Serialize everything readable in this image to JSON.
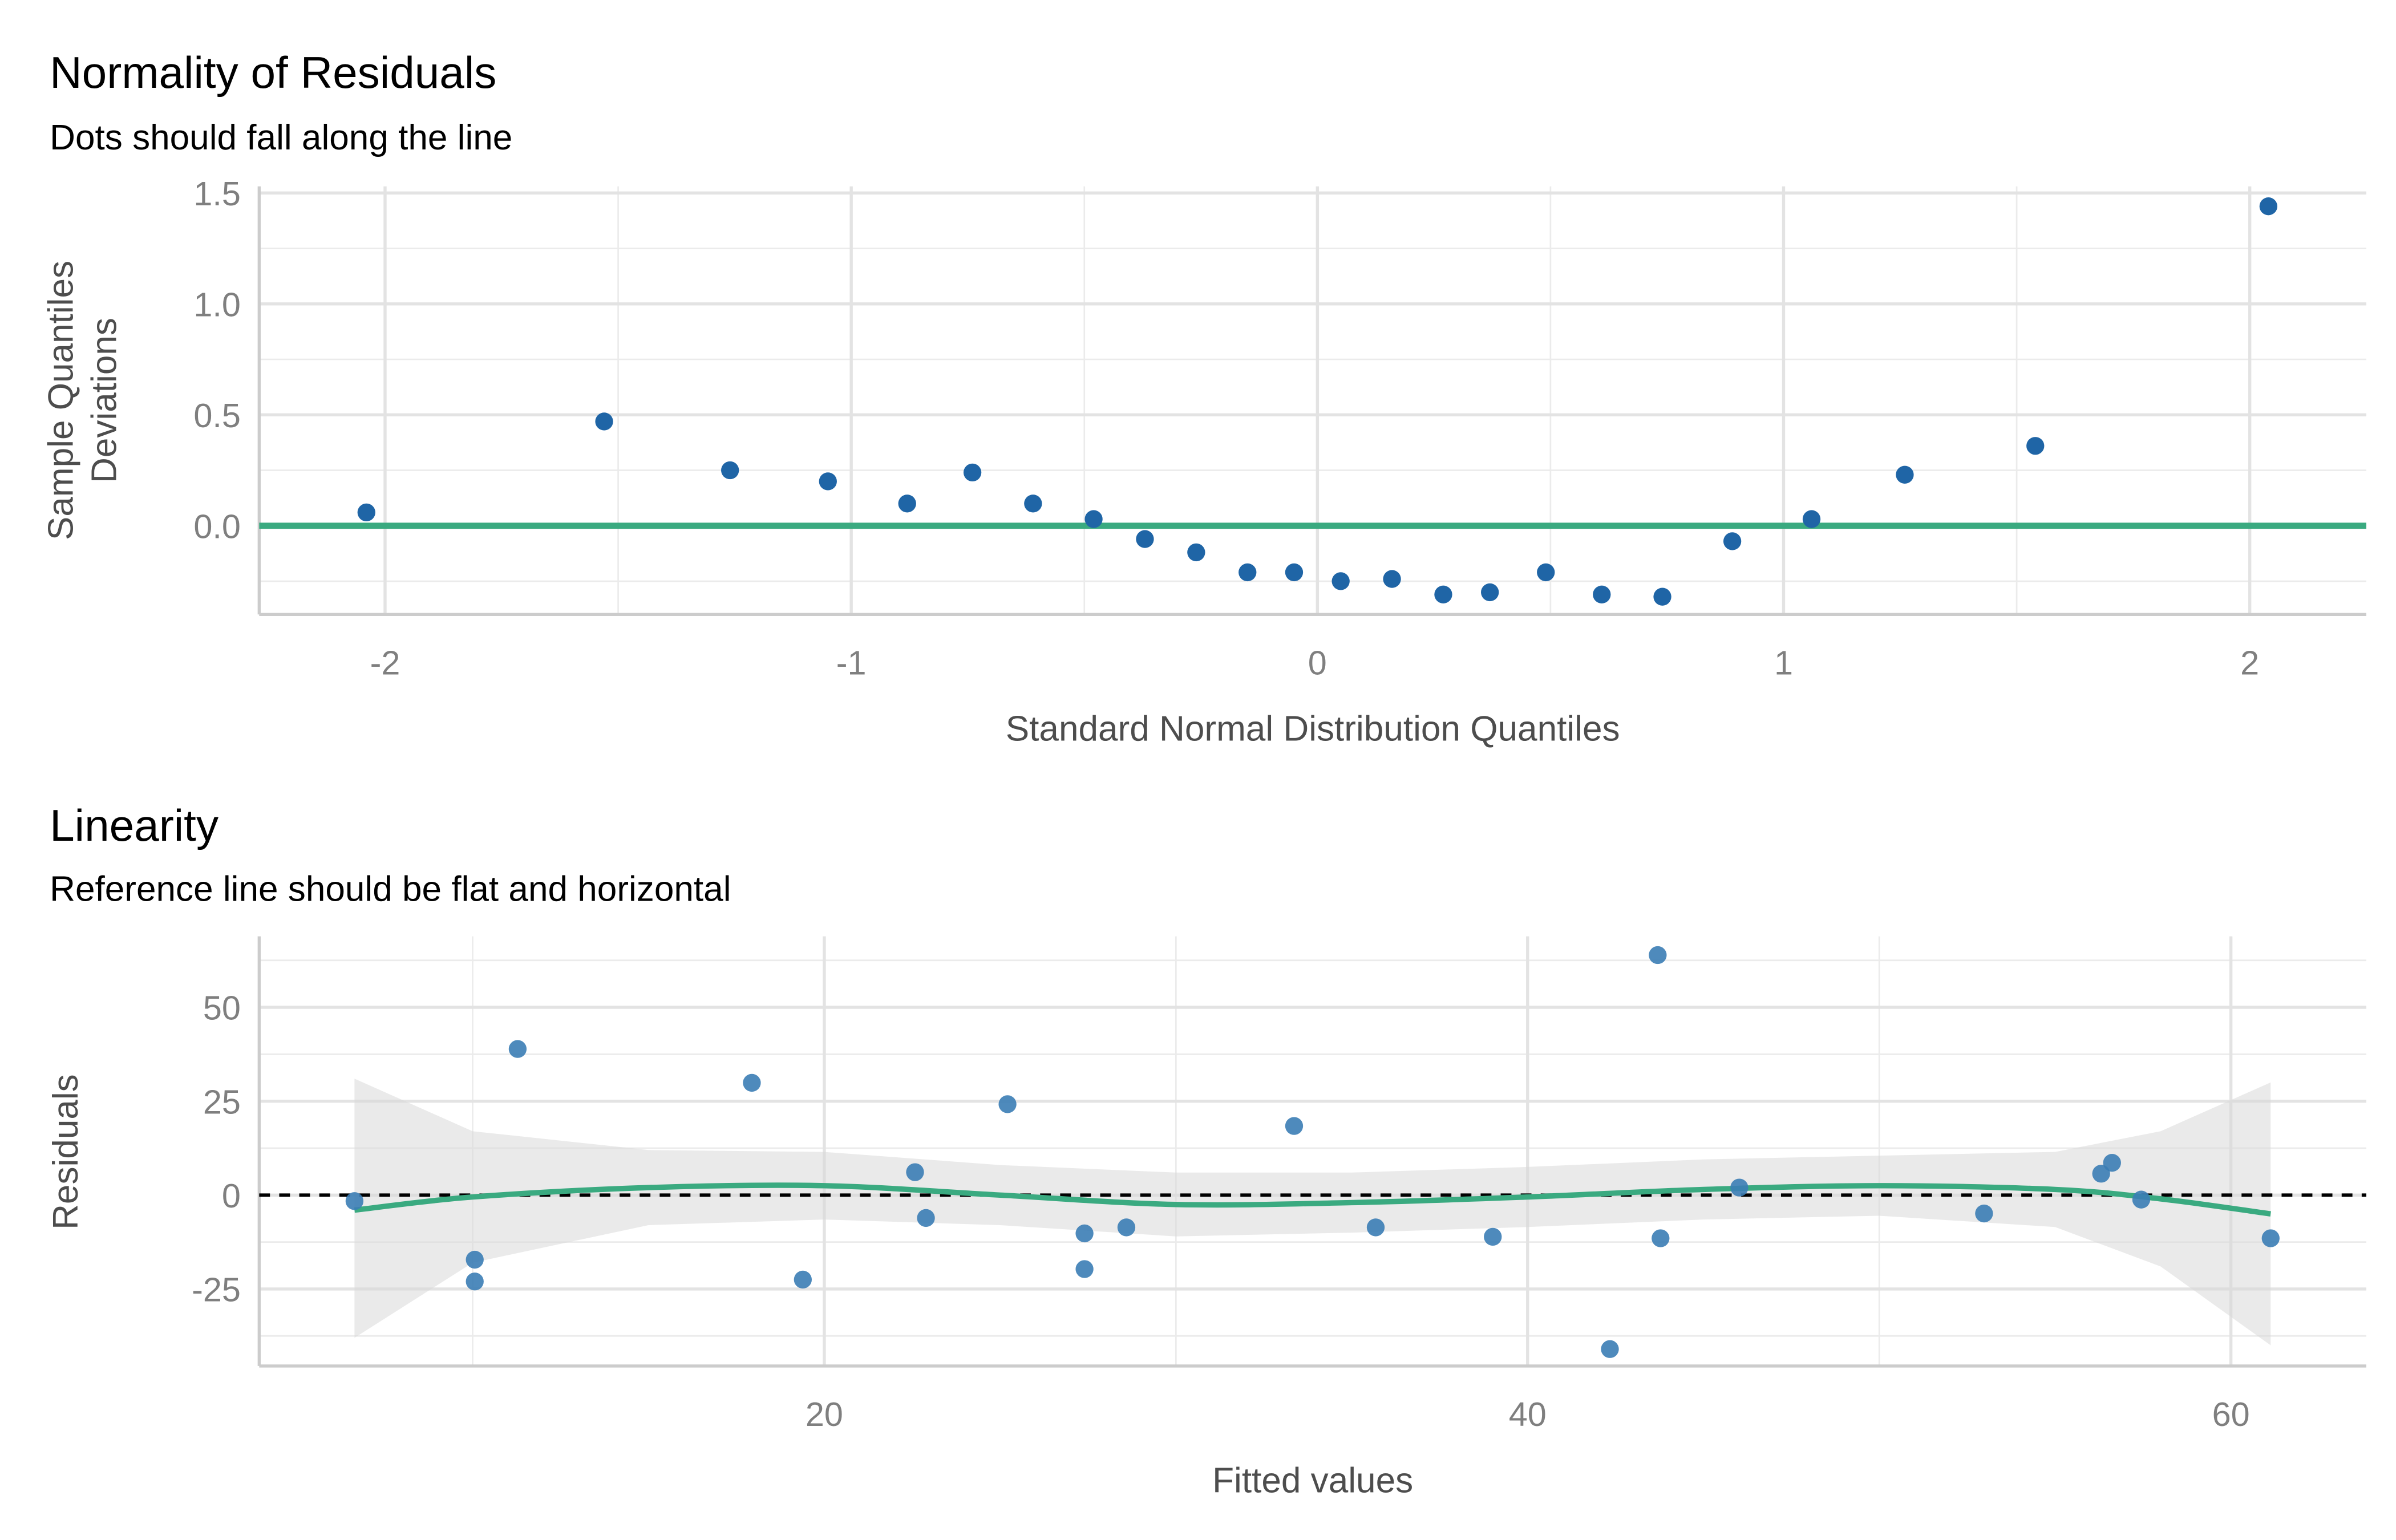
{
  "chart_data": [
    {
      "type": "scatter",
      "title": "Normality of Residuals",
      "subtitle": "Dots should fall along the line",
      "xlabel": "Standard Normal Distribution Quantiles",
      "ylabel": "Sample Quantiles\nDeviations",
      "ylabel_lines": [
        "Sample Quantiles",
        "Deviations"
      ],
      "xlim": [
        -2.27,
        2.25
      ],
      "ylim": [
        -0.4,
        1.53
      ],
      "xticks": [
        -2,
        -1,
        0,
        1,
        2
      ],
      "xtick_labels": [
        "-2",
        "-1",
        "0",
        "1",
        "2"
      ],
      "yticks": [
        0,
        0.5,
        1,
        1.5
      ],
      "ytick_labels": [
        "0.0",
        "0.5",
        "1.0",
        "1.5"
      ],
      "grid": true,
      "reference_line": 0,
      "point_color": "#1f65a6",
      "line_color": "#3aaa80",
      "points": [
        [
          -2.04,
          0.06
        ],
        [
          -1.53,
          0.47
        ],
        [
          -1.26,
          0.25
        ],
        [
          -1.05,
          0.2
        ],
        [
          -0.88,
          0.1
        ],
        [
          -0.74,
          0.24
        ],
        [
          -0.61,
          0.1
        ],
        [
          -0.48,
          0.03
        ],
        [
          -0.37,
          -0.06
        ],
        [
          -0.26,
          -0.12
        ],
        [
          -0.15,
          -0.21
        ],
        [
          -0.05,
          -0.21
        ],
        [
          0.05,
          -0.25
        ],
        [
          0.16,
          -0.24
        ],
        [
          0.27,
          -0.31
        ],
        [
          0.37,
          -0.3
        ],
        [
          0.49,
          -0.21
        ],
        [
          0.61,
          -0.31
        ],
        [
          0.74,
          -0.32
        ],
        [
          0.89,
          -0.07
        ],
        [
          1.06,
          0.03
        ],
        [
          1.26,
          0.23
        ],
        [
          1.54,
          0.36
        ],
        [
          2.04,
          1.44
        ]
      ]
    },
    {
      "type": "scatter",
      "title": "Linearity",
      "subtitle": "Reference line should be flat and horizontal",
      "xlabel": "Fitted values",
      "ylabel": "Residuals",
      "xlim": [
        3.93,
        63.85
      ],
      "ylim": [
        -45.5,
        68.9
      ],
      "xticks": [
        20,
        40,
        60
      ],
      "xtick_labels": [
        "20",
        "40",
        "60"
      ],
      "yticks": [
        -25,
        0,
        25,
        50
      ],
      "ytick_labels": [
        "-25",
        "0",
        "25",
        "50"
      ],
      "grid": true,
      "reference_line": 0,
      "point_color": "#3b7db5",
      "line_color": "#3aaa80",
      "points": [
        [
          6.64,
          -1.6
        ],
        [
          10.06,
          -17.2
        ],
        [
          10.06,
          -23.0
        ],
        [
          11.28,
          38.9
        ],
        [
          17.94,
          29.9
        ],
        [
          19.39,
          -22.5
        ],
        [
          22.58,
          6.1
        ],
        [
          22.89,
          -6.1
        ],
        [
          25.21,
          24.2
        ],
        [
          27.4,
          -10.2
        ],
        [
          27.4,
          -19.7
        ],
        [
          28.59,
          -8.6
        ],
        [
          33.36,
          18.4
        ],
        [
          35.68,
          -8.6
        ],
        [
          39.01,
          -11.1
        ],
        [
          42.34,
          -41.0
        ],
        [
          43.7,
          63.9
        ],
        [
          43.78,
          -11.5
        ],
        [
          46.02,
          2.0
        ],
        [
          52.98,
          -4.9
        ],
        [
          56.31,
          5.7
        ],
        [
          56.62,
          8.6
        ],
        [
          57.45,
          -1.2
        ],
        [
          61.13,
          -11.5
        ]
      ],
      "smooth": {
        "x": [
          6.64,
          10,
          15,
          20,
          25,
          30,
          35,
          40,
          45,
          50,
          55,
          58,
          61.13
        ],
        "y": [
          -4,
          -0.5,
          2,
          2.5,
          0,
          -2.5,
          -2,
          -0.5,
          1.5,
          2.5,
          1.5,
          -1,
          -5
        ],
        "upper": [
          31,
          17,
          12,
          11.5,
          8,
          6,
          6,
          7.5,
          9.5,
          10.5,
          11.5,
          17,
          30
        ],
        "lower": [
          -38,
          -18,
          -8,
          -6.5,
          -8,
          -11,
          -10,
          -8.5,
          -6.5,
          -5.5,
          -8.5,
          -19,
          -40
        ]
      }
    }
  ]
}
